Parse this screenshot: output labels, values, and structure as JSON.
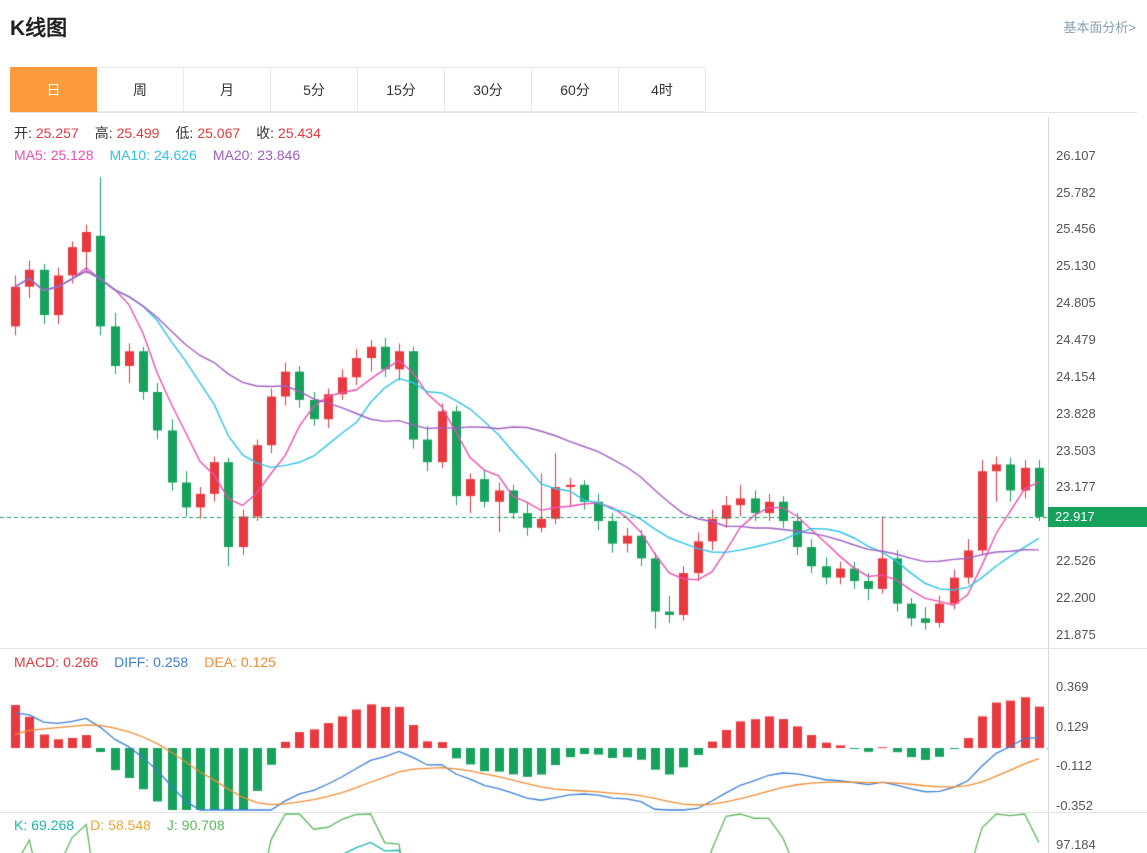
{
  "header": {
    "title": "K线图",
    "link": "基本面分析>"
  },
  "tabs": {
    "items": [
      {
        "key": "day",
        "label": "日",
        "active": true
      },
      {
        "key": "week",
        "label": "周",
        "active": false
      },
      {
        "key": "month",
        "label": "月",
        "active": false
      },
      {
        "key": "min5",
        "label": "5分",
        "active": false
      },
      {
        "key": "min15",
        "label": "15分",
        "active": false
      },
      {
        "key": "min30",
        "label": "30分",
        "active": false
      },
      {
        "key": "min60",
        "label": "60分",
        "active": false
      },
      {
        "key": "hour4",
        "label": "4时",
        "active": false
      }
    ]
  },
  "legends": {
    "ohlc": [
      {
        "name": "open",
        "label": "开:",
        "value": "25.257"
      },
      {
        "name": "high",
        "label": "高:",
        "value": "25.499"
      },
      {
        "name": "low",
        "label": "低:",
        "value": "25.067"
      },
      {
        "name": "close",
        "label": "收:",
        "value": "25.434"
      }
    ],
    "ma": [
      {
        "name": "ma5",
        "label": "MA5:",
        "value": "25.128",
        "color": "#ee4fb0"
      },
      {
        "name": "ma10",
        "label": "MA10:",
        "value": "24.626",
        "color": "#2ec3e7"
      },
      {
        "name": "ma20",
        "label": "MA20:",
        "value": "23.846",
        "color": "#a05fc5"
      }
    ],
    "macd": [
      {
        "name": "macd",
        "label": "MACD:",
        "value": "0.266",
        "color": "#e8393f"
      },
      {
        "name": "diff",
        "label": "DIFF:",
        "value": "0.258",
        "color": "#3d7fd6"
      },
      {
        "name": "dea",
        "label": "DEA:",
        "value": "0.125",
        "color": "#f08c32"
      }
    ],
    "kdj": [
      {
        "name": "k",
        "label": "K:",
        "value": "69.268",
        "color": "#1fb4ad"
      },
      {
        "name": "d",
        "label": "D:",
        "value": "58.548",
        "color": "#f0a732"
      },
      {
        "name": "j",
        "label": "J:",
        "value": "90.708",
        "color": "#5cb85c"
      }
    ]
  },
  "chart_data": {
    "type": "candlestick",
    "title": "K线图",
    "current_price": "22.917",
    "price_axis_labels": [
      "26.107",
      "25.782",
      "25.456",
      "25.130",
      "24.805",
      "24.479",
      "24.154",
      "23.828",
      "23.503",
      "23.177",
      "22.526",
      "22.200",
      "21.875"
    ],
    "macd_axis_labels": [
      "0.369",
      "0.129",
      "-0.112",
      "-0.352"
    ],
    "kdj_axis_label": "97.184",
    "colors": {
      "up": "#e8393f",
      "down": "#16a15c",
      "current": "#16a15c",
      "ma5": "#ee4fb0",
      "ma10": "#2ec3e7",
      "ma20": "#a05fc5",
      "diff": "#3d7fd6",
      "dea": "#f08c32",
      "k": "#1fb4ad",
      "d": "#f0a732",
      "j": "#5cb85c",
      "tab_active": "#fb9b3e"
    },
    "candles": [
      [
        24.6,
        25.05,
        24.52,
        24.95
      ],
      [
        24.95,
        25.18,
        24.85,
        25.1
      ],
      [
        25.1,
        25.15,
        24.62,
        24.7
      ],
      [
        24.7,
        25.12,
        24.62,
        25.05
      ],
      [
        25.05,
        25.35,
        24.98,
        25.3
      ],
      [
        25.257,
        25.499,
        25.067,
        25.434
      ],
      [
        25.4,
        25.92,
        24.52,
        24.6
      ],
      [
        24.6,
        24.72,
        24.18,
        24.25
      ],
      [
        24.25,
        24.45,
        24.1,
        24.38
      ],
      [
        24.38,
        24.42,
        23.95,
        24.02
      ],
      [
        24.02,
        24.1,
        23.6,
        23.68
      ],
      [
        23.68,
        23.78,
        23.15,
        23.22
      ],
      [
        23.22,
        23.32,
        22.92,
        23.0
      ],
      [
        23.0,
        23.18,
        22.9,
        23.12
      ],
      [
        23.12,
        23.45,
        23.05,
        23.4
      ],
      [
        23.4,
        23.44,
        22.48,
        22.65
      ],
      [
        22.65,
        22.98,
        22.58,
        22.92
      ],
      [
        22.92,
        23.6,
        22.88,
        23.55
      ],
      [
        23.55,
        24.05,
        23.48,
        23.98
      ],
      [
        23.98,
        24.28,
        23.9,
        24.2
      ],
      [
        24.2,
        24.25,
        23.88,
        23.95
      ],
      [
        23.95,
        24.02,
        23.72,
        23.78
      ],
      [
        23.78,
        24.05,
        23.7,
        24.0
      ],
      [
        24.0,
        24.22,
        23.95,
        24.15
      ],
      [
        24.15,
        24.4,
        24.08,
        24.32
      ],
      [
        24.32,
        24.48,
        24.2,
        24.42
      ],
      [
        24.42,
        24.5,
        24.15,
        24.22
      ],
      [
        24.22,
        24.45,
        24.12,
        24.38
      ],
      [
        24.38,
        24.42,
        23.52,
        23.6
      ],
      [
        23.6,
        23.72,
        23.32,
        23.4
      ],
      [
        23.4,
        23.92,
        23.35,
        23.85
      ],
      [
        23.85,
        23.9,
        23.02,
        23.1
      ],
      [
        23.1,
        23.3,
        22.95,
        23.25
      ],
      [
        23.25,
        23.33,
        23.0,
        23.05
      ],
      [
        23.05,
        23.22,
        22.78,
        23.15
      ],
      [
        23.15,
        23.2,
        22.9,
        22.95
      ],
      [
        22.95,
        23.05,
        22.75,
        22.82
      ],
      [
        22.82,
        23.3,
        22.78,
        22.9
      ],
      [
        22.9,
        23.48,
        22.85,
        23.18
      ],
      [
        23.18,
        23.26,
        23.0,
        23.2
      ],
      [
        23.2,
        23.24,
        22.98,
        23.05
      ],
      [
        23.05,
        23.12,
        22.8,
        22.88
      ],
      [
        22.88,
        22.95,
        22.6,
        22.68
      ],
      [
        22.68,
        22.82,
        22.6,
        22.75
      ],
      [
        22.75,
        22.8,
        22.48,
        22.55
      ],
      [
        22.55,
        22.6,
        21.93,
        22.08
      ],
      [
        22.08,
        22.22,
        21.98,
        22.05
      ],
      [
        22.05,
        22.48,
        22.0,
        22.42
      ],
      [
        22.42,
        22.78,
        22.35,
        22.7
      ],
      [
        22.7,
        22.98,
        22.62,
        22.9
      ],
      [
        22.9,
        23.1,
        22.82,
        23.02
      ],
      [
        23.02,
        23.2,
        22.92,
        23.08
      ],
      [
        23.08,
        23.15,
        22.88,
        22.95
      ],
      [
        22.95,
        23.12,
        22.88,
        23.05
      ],
      [
        23.05,
        23.1,
        22.82,
        22.88
      ],
      [
        22.88,
        22.95,
        22.58,
        22.65
      ],
      [
        22.65,
        22.72,
        22.42,
        22.48
      ],
      [
        22.48,
        22.56,
        22.32,
        22.38
      ],
      [
        22.38,
        22.52,
        22.32,
        22.46
      ],
      [
        22.46,
        22.52,
        22.28,
        22.35
      ],
      [
        22.35,
        22.42,
        22.18,
        22.28
      ],
      [
        22.28,
        22.92,
        22.24,
        22.55
      ],
      [
        22.55,
        22.62,
        22.08,
        22.15
      ],
      [
        22.15,
        22.2,
        21.95,
        22.02
      ],
      [
        22.02,
        22.12,
        21.92,
        21.98
      ],
      [
        21.98,
        22.22,
        21.94,
        22.15
      ],
      [
        22.15,
        22.45,
        22.1,
        22.38
      ],
      [
        22.38,
        22.72,
        22.32,
        22.62
      ],
      [
        22.62,
        23.42,
        22.58,
        23.32
      ],
      [
        23.32,
        23.45,
        23.05,
        23.38
      ],
      [
        23.38,
        23.44,
        23.05,
        23.15
      ],
      [
        23.15,
        23.42,
        23.08,
        23.35
      ],
      [
        23.35,
        23.42,
        22.88,
        22.917
      ]
    ]
  }
}
